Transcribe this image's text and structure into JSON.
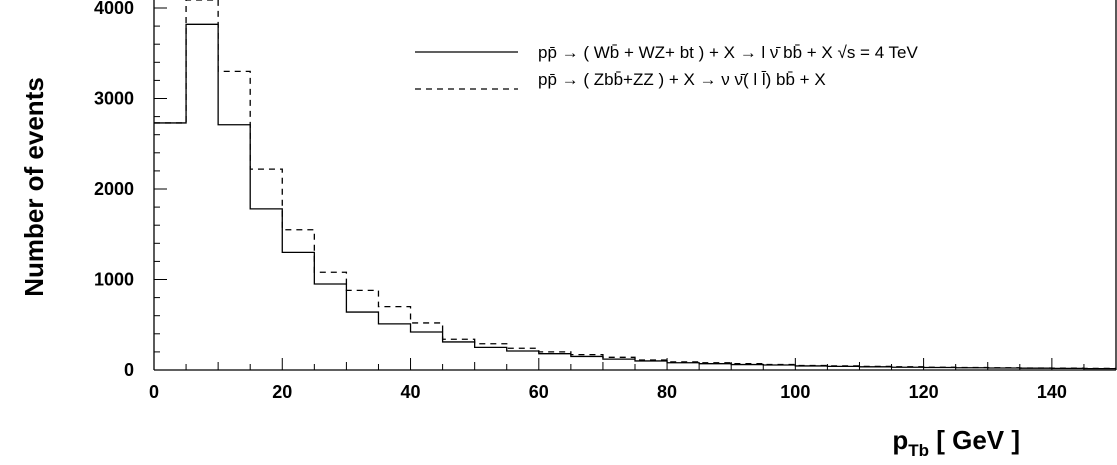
{
  "chart_data": {
    "type": "histogram",
    "xlabel_main": "p",
    "xlabel_sub": "Tb",
    "xlabel_rest": " [ GeV ]",
    "ylabel": "Number of events",
    "xlim": [
      0,
      150
    ],
    "ylim": [
      0,
      4000
    ],
    "xticks": [
      "0",
      "20",
      "40",
      "60",
      "80",
      "100",
      "120",
      "140"
    ],
    "yticks": [
      "0",
      "1000",
      "2000",
      "3000",
      "4000"
    ],
    "bin_edges": [
      0,
      5,
      10,
      15,
      20,
      25,
      30,
      35,
      40,
      45,
      50,
      55,
      60,
      65,
      70,
      75,
      80,
      85,
      90,
      95,
      100,
      105,
      110,
      115,
      120,
      125,
      130,
      135,
      140,
      145,
      150
    ],
    "series": [
      {
        "legend": "pp̄ → ( Wb̄ + WZ+ bt ) + X  → l ν̄ bb̄ + X  √s = 4 TeV",
        "style": "solid",
        "values": [
          2730,
          3820,
          2710,
          1780,
          1300,
          950,
          640,
          510,
          420,
          310,
          250,
          210,
          180,
          150,
          120,
          100,
          80,
          70,
          60,
          55,
          45,
          40,
          35,
          30,
          28,
          25,
          22,
          20,
          18,
          15
        ]
      },
      {
        "legend": "pp̄ → ( Zbb̄+ZZ )  + X  → ν ν̄( l l̄) bb̄ + X",
        "style": "dashed",
        "values": [
          2730,
          4200,
          3300,
          2220,
          1550,
          1080,
          880,
          700,
          520,
          340,
          290,
          240,
          200,
          170,
          140,
          110,
          90,
          80,
          70,
          60,
          50,
          45,
          40,
          35,
          30,
          28,
          25,
          22,
          20,
          18
        ]
      }
    ]
  }
}
